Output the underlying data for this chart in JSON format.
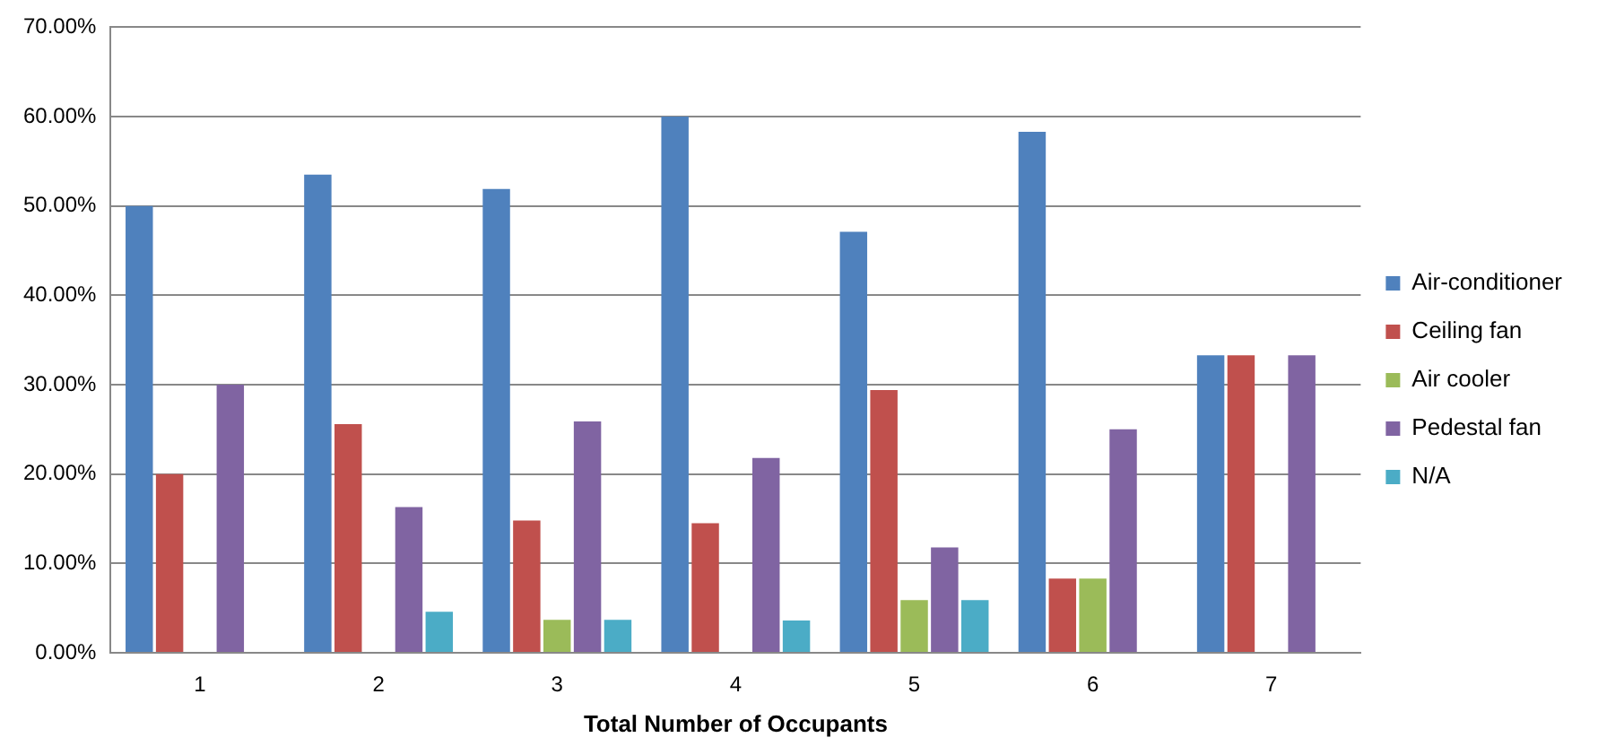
{
  "chart_data": {
    "type": "bar",
    "xlabel": "Total Number of Occupants",
    "categories": [
      "1",
      "2",
      "3",
      "4",
      "5",
      "6",
      "7"
    ],
    "series": [
      {
        "name": "Air-conditioner",
        "color": "#4f81bd",
        "values": [
          50,
          53.5,
          51.9,
          60,
          47.1,
          58.3,
          33.3
        ]
      },
      {
        "name": "Ceiling fan",
        "color": "#c0504d",
        "values": [
          20,
          25.6,
          14.8,
          14.5,
          29.4,
          8.3,
          33.3
        ]
      },
      {
        "name": "Air cooler",
        "color": "#9bbb59",
        "values": [
          0,
          0,
          3.7,
          0,
          5.9,
          8.3,
          0
        ]
      },
      {
        "name": "Pedestal fan",
        "color": "#8064a2",
        "values": [
          30,
          16.3,
          25.9,
          21.8,
          11.8,
          25,
          33.3
        ]
      },
      {
        "name": "N/A",
        "color": "#4bacc6",
        "values": [
          0,
          4.6,
          3.7,
          3.6,
          5.9,
          0,
          0
        ]
      }
    ],
    "ylim": [
      0,
      70
    ],
    "yticks": [
      {
        "value": 0,
        "label": "0.00%"
      },
      {
        "value": 10,
        "label": "10.00%"
      },
      {
        "value": 20,
        "label": "20.00%"
      },
      {
        "value": 30,
        "label": "30.00%"
      },
      {
        "value": 40,
        "label": "40.00%"
      },
      {
        "value": 50,
        "label": "50.00%"
      },
      {
        "value": 60,
        "label": "60.00%"
      },
      {
        "value": 70,
        "label": "70.00%"
      }
    ],
    "grid": "y",
    "legend": "right"
  }
}
